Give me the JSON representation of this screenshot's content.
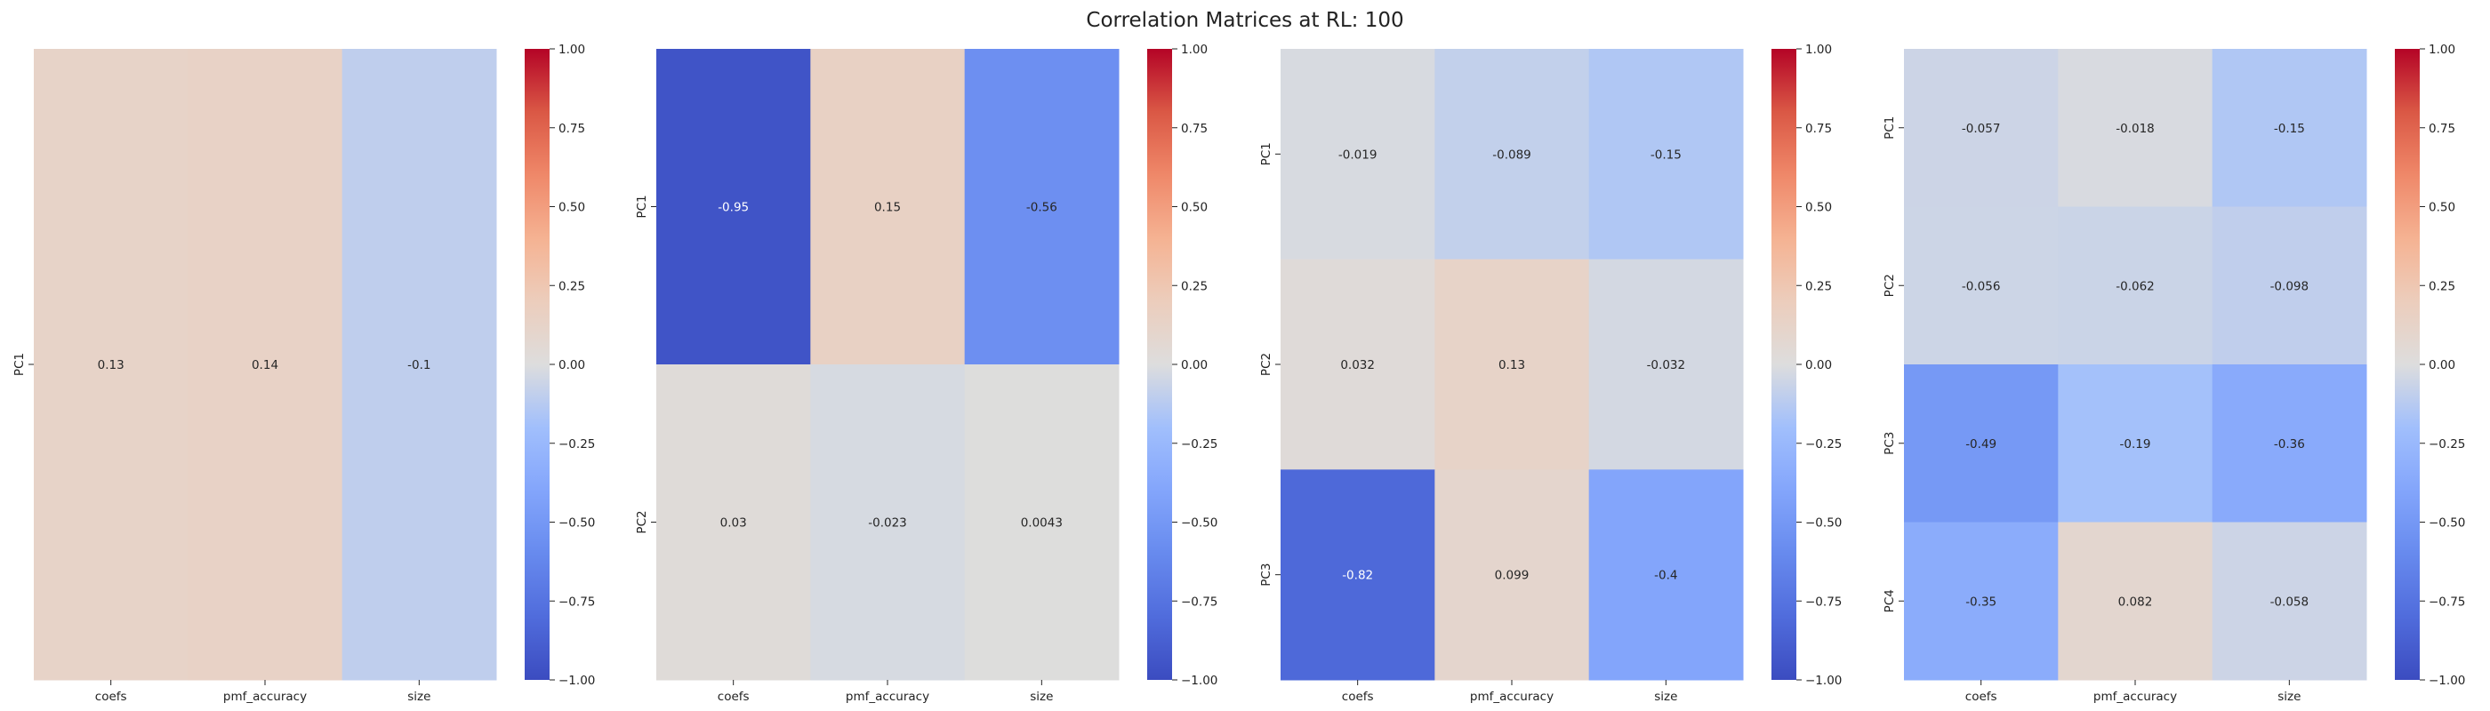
{
  "figure": {
    "title": "Correlation Matrices at RL: 100"
  },
  "colorbar": {
    "min": -1.0,
    "max": 1.0,
    "ticks": [
      "1.00",
      "0.75",
      "0.50",
      "0.25",
      "0.00",
      "−0.25",
      "−0.50",
      "−0.75",
      "−1.00"
    ],
    "tick_values": [
      1.0,
      0.75,
      0.5,
      0.25,
      0.0,
      -0.25,
      -0.5,
      -0.75,
      -1.0
    ],
    "colormap": "coolwarm"
  },
  "chart_data": [
    {
      "type": "heatmap",
      "title": "",
      "xlabel": "",
      "ylabel": "",
      "zlim": [
        -1,
        1
      ],
      "x": [
        "coefs",
        "pmf_accuracy",
        "size"
      ],
      "y": [
        "PC1"
      ],
      "values": [
        [
          0.13,
          0.14,
          -0.1
        ]
      ],
      "labels": [
        [
          "0.13",
          "0.14",
          "-0.1"
        ]
      ]
    },
    {
      "type": "heatmap",
      "title": "",
      "xlabel": "",
      "ylabel": "",
      "zlim": [
        -1,
        1
      ],
      "x": [
        "coefs",
        "pmf_accuracy",
        "size"
      ],
      "y": [
        "PC1",
        "PC2"
      ],
      "values": [
        [
          -0.95,
          0.15,
          -0.56
        ],
        [
          0.03,
          -0.023,
          0.0043
        ]
      ],
      "labels": [
        [
          "-0.95",
          "0.15",
          "-0.56"
        ],
        [
          "0.03",
          "-0.023",
          "0.0043"
        ]
      ]
    },
    {
      "type": "heatmap",
      "title": "",
      "xlabel": "",
      "ylabel": "",
      "zlim": [
        -1,
        1
      ],
      "x": [
        "coefs",
        "pmf_accuracy",
        "size"
      ],
      "y": [
        "PC1",
        "PC2",
        "PC3"
      ],
      "values": [
        [
          -0.019,
          -0.089,
          -0.15
        ],
        [
          0.032,
          0.13,
          -0.032
        ],
        [
          -0.82,
          0.099,
          -0.4
        ]
      ],
      "labels": [
        [
          "-0.019",
          "-0.089",
          "-0.15"
        ],
        [
          "0.032",
          "0.13",
          "-0.032"
        ],
        [
          "-0.82",
          "0.099",
          "-0.4"
        ]
      ]
    },
    {
      "type": "heatmap",
      "title": "",
      "xlabel": "",
      "ylabel": "",
      "zlim": [
        -1,
        1
      ],
      "x": [
        "coefs",
        "pmf_accuracy",
        "size"
      ],
      "y": [
        "PC1",
        "PC2",
        "PC3",
        "PC4"
      ],
      "values": [
        [
          -0.057,
          -0.018,
          -0.15
        ],
        [
          -0.056,
          -0.062,
          -0.098
        ],
        [
          -0.49,
          -0.19,
          -0.36
        ],
        [
          -0.35,
          0.082,
          -0.058
        ]
      ],
      "labels": [
        [
          "-0.057",
          "-0.018",
          "-0.15"
        ],
        [
          "-0.056",
          "-0.062",
          "-0.098"
        ],
        [
          "-0.49",
          "-0.19",
          "-0.36"
        ],
        [
          "-0.35",
          "0.082",
          "-0.058"
        ]
      ]
    }
  ]
}
